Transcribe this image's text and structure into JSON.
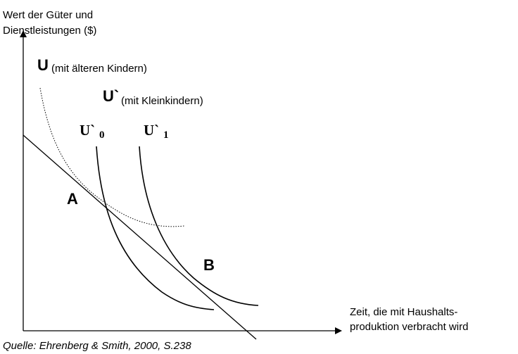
{
  "axes": {
    "y_label": [
      "Wert der Güter und",
      "Dienstleistungen ($)"
    ],
    "x_label": [
      "Zeit, die mit Haushalts-",
      "produktion verbracht wird"
    ]
  },
  "curves": [
    {
      "label": "U",
      "note": "(mit älteren Kindern)"
    },
    {
      "label": "U`",
      "note": "(mit Kleinkindern)"
    },
    {
      "label": "U`",
      "subscript": "0"
    },
    {
      "label": "U`",
      "subscript": "1"
    }
  ],
  "points": [
    "A",
    "B"
  ],
  "source": "Quelle: Ehrenberg & Smith, 2000, S.238"
}
